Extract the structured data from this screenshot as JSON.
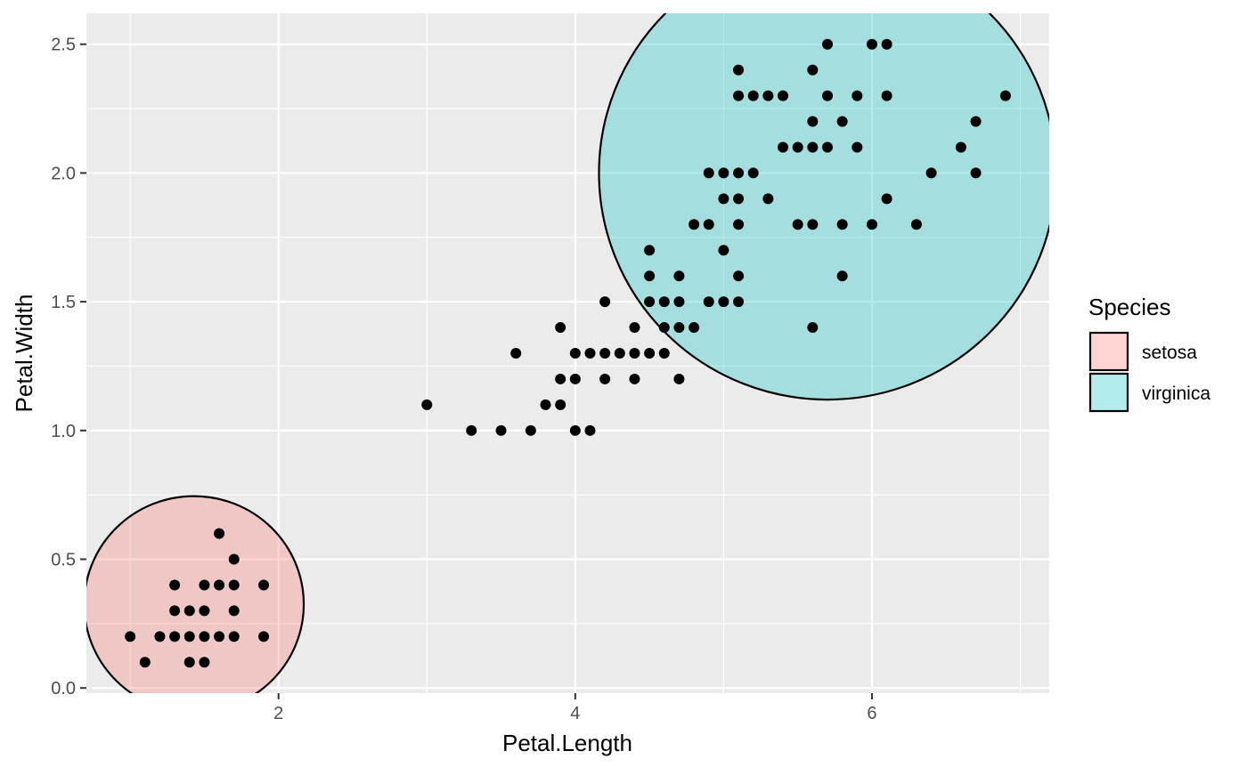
{
  "chart_data": {
    "type": "scatter",
    "xlabel": "Petal.Length",
    "ylabel": "Petal.Width",
    "xlim": [
      0.705,
      7.195
    ],
    "ylim": [
      -0.02,
      2.62
    ],
    "x_ticks": [
      2,
      4,
      6
    ],
    "y_ticks": [
      0.0,
      0.5,
      1.0,
      1.5,
      2.0,
      2.5
    ],
    "x_tick_labels": [
      "2",
      "4",
      "6"
    ],
    "y_tick_labels": [
      "0.0",
      "0.5",
      "1.0",
      "1.5",
      "2.0",
      "2.5"
    ],
    "grid": true,
    "legend": {
      "title": "Species",
      "position": "right",
      "entries": [
        {
          "label": "setosa",
          "color": "#F8766D"
        },
        {
          "label": "virginica",
          "color": "#00BFC4"
        }
      ]
    },
    "ellipses": [
      {
        "name": "setosa",
        "color": "#F8766D",
        "fill_opacity": 0.3,
        "cx": 1.43,
        "cy": 0.325,
        "rx": 0.74,
        "ry": 0.42
      },
      {
        "name": "virginica",
        "color": "#00BFC4",
        "fill_opacity": 0.3,
        "cx": 5.7,
        "cy": 2.0,
        "rx": 1.54,
        "ry": 0.88
      }
    ],
    "points": [
      [
        1.0,
        0.2
      ],
      [
        1.1,
        0.1
      ],
      [
        1.2,
        0.2
      ],
      [
        1.3,
        0.2
      ],
      [
        1.3,
        0.3
      ],
      [
        1.3,
        0.4
      ],
      [
        1.4,
        0.1
      ],
      [
        1.4,
        0.2
      ],
      [
        1.4,
        0.3
      ],
      [
        1.5,
        0.1
      ],
      [
        1.5,
        0.2
      ],
      [
        1.5,
        0.3
      ],
      [
        1.5,
        0.4
      ],
      [
        1.6,
        0.2
      ],
      [
        1.6,
        0.4
      ],
      [
        1.6,
        0.6
      ],
      [
        1.7,
        0.2
      ],
      [
        1.7,
        0.3
      ],
      [
        1.7,
        0.4
      ],
      [
        1.7,
        0.5
      ],
      [
        1.9,
        0.2
      ],
      [
        1.9,
        0.4
      ],
      [
        3.0,
        1.1
      ],
      [
        3.3,
        1.0
      ],
      [
        3.5,
        1.0
      ],
      [
        3.6,
        1.3
      ],
      [
        3.7,
        1.0
      ],
      [
        3.8,
        1.1
      ],
      [
        3.9,
        1.1
      ],
      [
        3.9,
        1.2
      ],
      [
        3.9,
        1.4
      ],
      [
        4.0,
        1.0
      ],
      [
        4.0,
        1.2
      ],
      [
        4.0,
        1.3
      ],
      [
        4.1,
        1.0
      ],
      [
        4.1,
        1.3
      ],
      [
        4.2,
        1.2
      ],
      [
        4.2,
        1.3
      ],
      [
        4.2,
        1.5
      ],
      [
        4.3,
        1.3
      ],
      [
        4.4,
        1.2
      ],
      [
        4.4,
        1.3
      ],
      [
        4.4,
        1.4
      ],
      [
        4.5,
        1.3
      ],
      [
        4.5,
        1.5
      ],
      [
        4.5,
        1.6
      ],
      [
        4.5,
        1.7
      ],
      [
        4.6,
        1.3
      ],
      [
        4.6,
        1.4
      ],
      [
        4.6,
        1.5
      ],
      [
        4.7,
        1.2
      ],
      [
        4.7,
        1.4
      ],
      [
        4.7,
        1.5
      ],
      [
        4.7,
        1.6
      ],
      [
        4.8,
        1.4
      ],
      [
        4.8,
        1.8
      ],
      [
        4.9,
        1.5
      ],
      [
        4.9,
        1.8
      ],
      [
        4.9,
        2.0
      ],
      [
        5.0,
        1.5
      ],
      [
        5.0,
        1.7
      ],
      [
        5.0,
        1.9
      ],
      [
        5.0,
        2.0
      ],
      [
        5.1,
        1.5
      ],
      [
        5.1,
        1.6
      ],
      [
        5.1,
        1.8
      ],
      [
        5.1,
        1.9
      ],
      [
        5.1,
        2.0
      ],
      [
        5.1,
        2.3
      ],
      [
        5.1,
        2.4
      ],
      [
        5.2,
        2.0
      ],
      [
        5.2,
        2.3
      ],
      [
        5.3,
        1.9
      ],
      [
        5.3,
        2.3
      ],
      [
        5.4,
        2.1
      ],
      [
        5.4,
        2.3
      ],
      [
        5.5,
        1.8
      ],
      [
        5.5,
        2.1
      ],
      [
        5.6,
        1.4
      ],
      [
        5.6,
        1.8
      ],
      [
        5.6,
        2.1
      ],
      [
        5.6,
        2.2
      ],
      [
        5.6,
        2.4
      ],
      [
        5.7,
        2.1
      ],
      [
        5.7,
        2.3
      ],
      [
        5.7,
        2.5
      ],
      [
        5.8,
        1.6
      ],
      [
        5.8,
        1.8
      ],
      [
        5.8,
        2.2
      ],
      [
        5.9,
        2.1
      ],
      [
        5.9,
        2.3
      ],
      [
        6.0,
        1.8
      ],
      [
        6.0,
        2.5
      ],
      [
        6.1,
        1.9
      ],
      [
        6.1,
        2.3
      ],
      [
        6.1,
        2.5
      ],
      [
        6.3,
        1.8
      ],
      [
        6.4,
        2.0
      ],
      [
        6.6,
        2.1
      ],
      [
        6.7,
        2.0
      ],
      [
        6.7,
        2.2
      ],
      [
        6.9,
        2.3
      ]
    ]
  }
}
